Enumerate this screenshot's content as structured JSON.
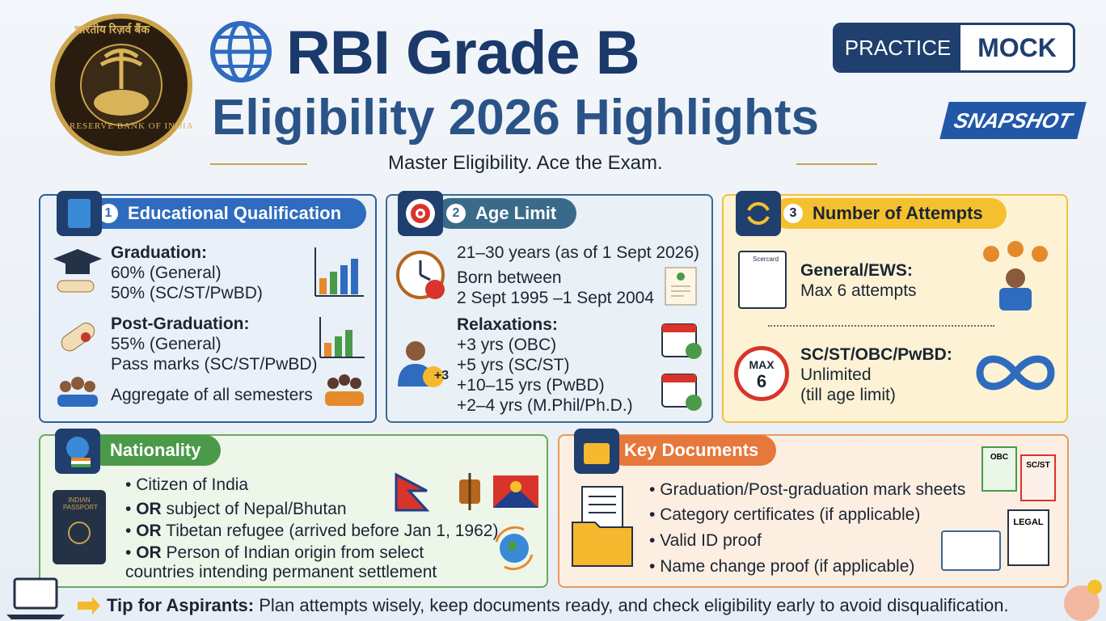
{
  "header": {
    "emblem_hindi": "भारतीय रिज़र्व बैंक",
    "emblem_english": "RESERVE BANK OF INDIA",
    "title_line1": "RBI Grade B",
    "title_line2": "Eligibility 2026 Highlights",
    "badge_practice": "PRACTICE",
    "badge_mock": "MOCK",
    "snapshot": "SNAPSHOT",
    "tagline": "Master Eligibility. Ace the Exam."
  },
  "education": {
    "number": "1",
    "title": "Educational Qualification",
    "graduation": {
      "heading": "Graduation:",
      "lines": [
        "60% (General)",
        "50% (SC/ST/PwBD)"
      ]
    },
    "post_graduation": {
      "heading": "Post-Graduation:",
      "lines": [
        "55% (General)",
        "Pass marks (SC/ST/PwBD)"
      ]
    },
    "aggregate": "Aggregate of all semesters"
  },
  "age": {
    "number": "2",
    "title": "Age Limit",
    "range": "21–30 years (as of 1 Sept 2026)",
    "born_label": "Born between",
    "born_range": "2 Sept 1995 –1 Sept 2004",
    "relaxations_heading": "Relaxations:",
    "relaxations": [
      "+3 yrs (OBC)",
      "+5 yrs (SC/ST)",
      "+10–15 yrs (PwBD)",
      "+2–4 yrs (M.Phil/Ph.D.)"
    ],
    "person_badge": "+3"
  },
  "attempts": {
    "number": "3",
    "title": "Number of Attempts",
    "scorecard": "Scercard",
    "general": {
      "heading": "General/EWS:",
      "lines": [
        "Max 6 attempts"
      ]
    },
    "reserved": {
      "heading": "SC/ST/OBC/PwBD:",
      "lines": [
        "Unlimited",
        "(till age limit)"
      ]
    },
    "max_badge": {
      "label": "MAX",
      "number": "6"
    }
  },
  "nationality": {
    "title": "Nationality",
    "passport": "INDIAN PASSPORT",
    "items": [
      {
        "prefix": null,
        "text": "Citizen of India"
      },
      {
        "prefix": "OR",
        "text": "subject of Nepal/Bhutan"
      },
      {
        "prefix": "OR",
        "text": "Tibetan refugee (arrived before Jan 1, 1962)"
      },
      {
        "prefix": "OR",
        "text": "Person of Indian origin from select countries intending permanent settlement"
      }
    ]
  },
  "documents": {
    "title": "Key Documents",
    "items": [
      "Graduation/Post-graduation mark sheets",
      "Category certificates (if applicable)",
      "Valid ID proof",
      "Name change proof (if applicable)"
    ],
    "icon_labels": [
      "OBC",
      "SC/ST",
      "LEGAL"
    ]
  },
  "tip": {
    "label": "Tip for Aspirants:",
    "text": "Plan attempts wisely, keep documents ready, and check eligibility early to avoid disqualification."
  }
}
